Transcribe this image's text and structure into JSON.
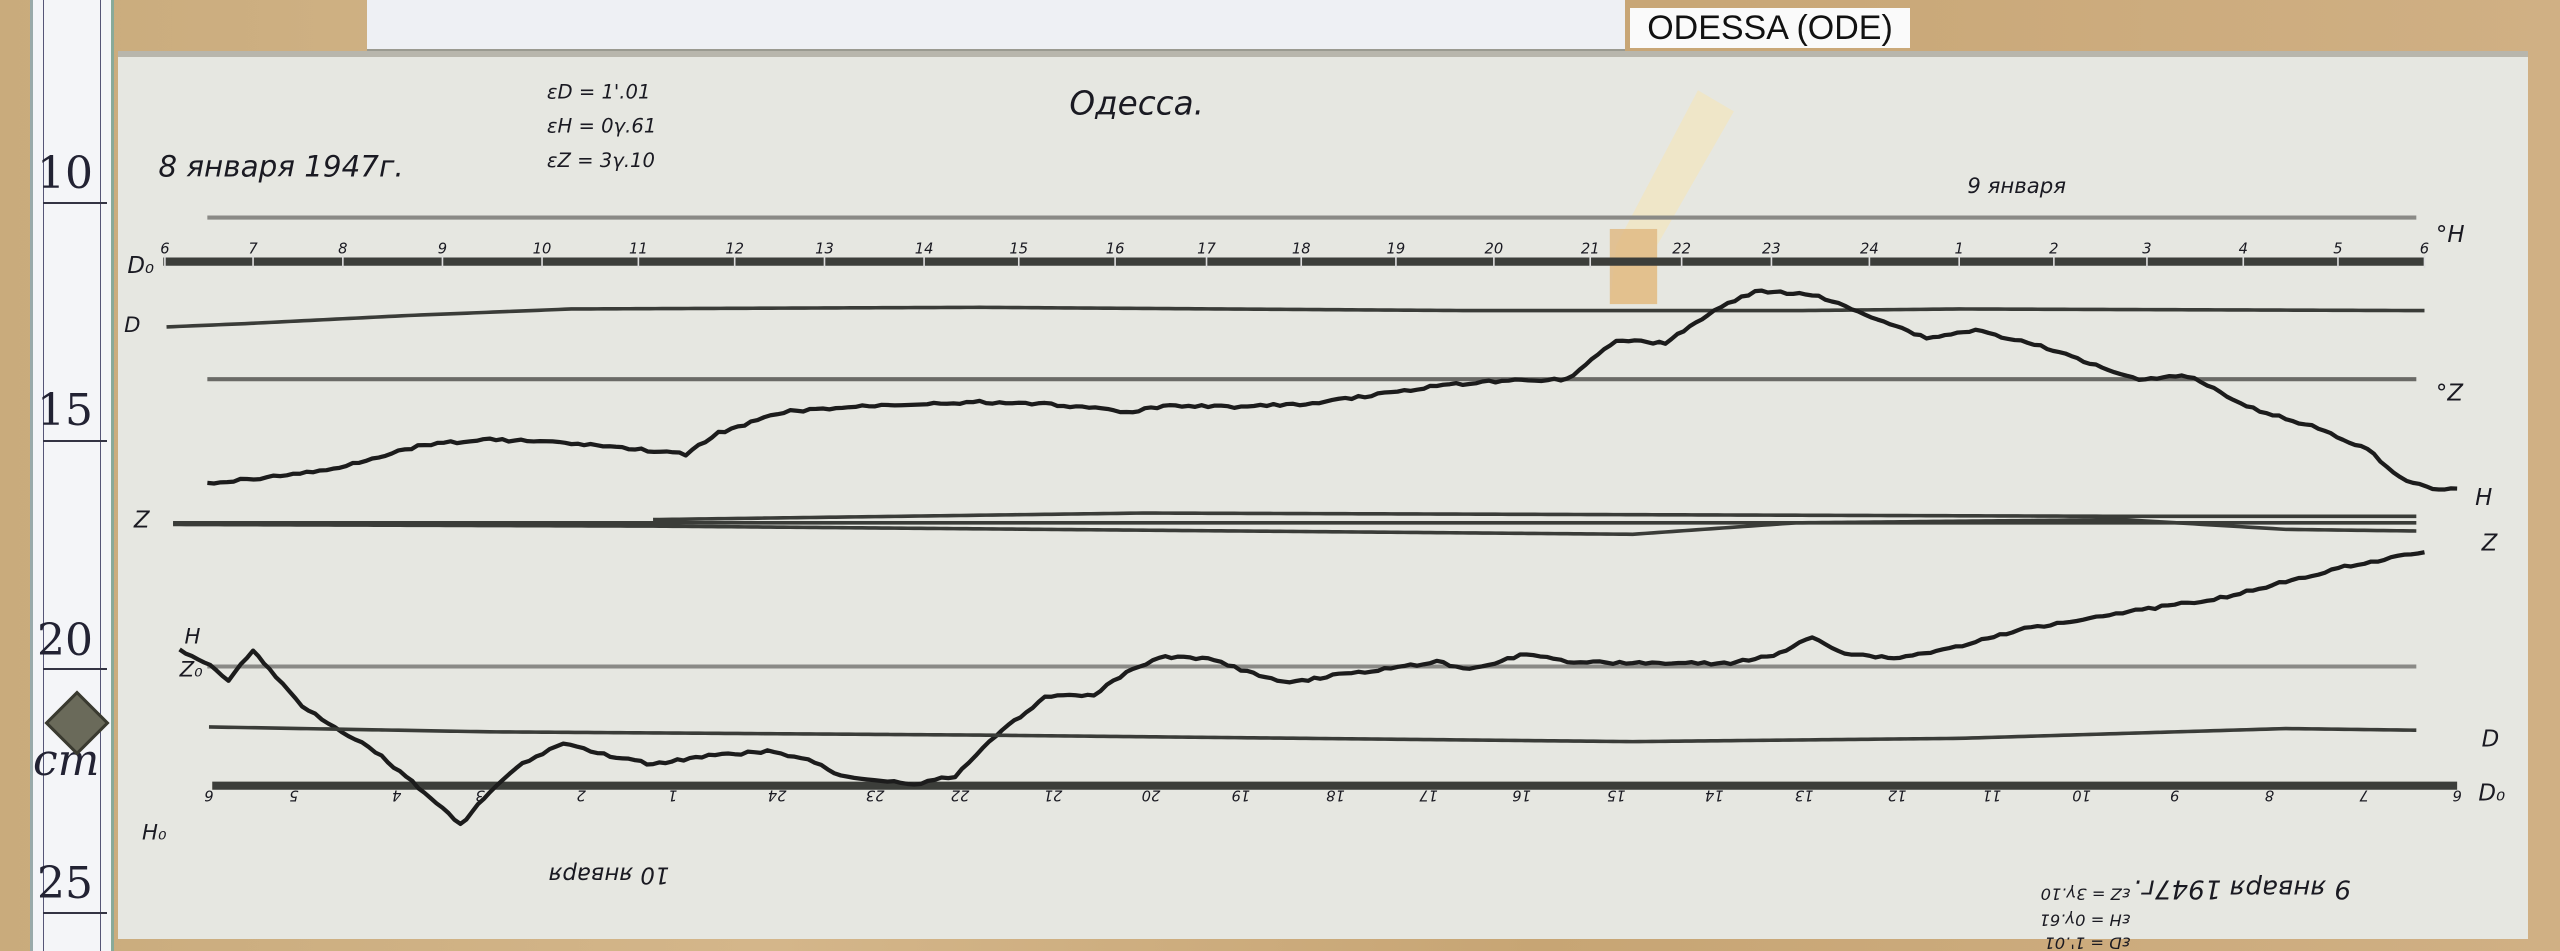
{
  "ruler": {
    "marks": [
      "10",
      "15",
      "20",
      "cm",
      "25"
    ]
  },
  "station_label": "ODESSA (ODE)",
  "magnetogram": {
    "title": "Одесса.",
    "date_start": "8 января 1947г.",
    "date_next": "9 января",
    "scale_values": {
      "eD": "εD = 1'.01",
      "eH": "εH = 0γ.61",
      "eZ": "εZ = 3γ.10"
    },
    "upper_hour_labels": [
      "6",
      "7",
      "8",
      "9",
      "10",
      "11",
      "12",
      "13",
      "14",
      "15",
      "16",
      "17",
      "18",
      "19",
      "20",
      "21",
      "22",
      "23",
      "24",
      "1",
      "2",
      "3",
      "4",
      "5",
      "6"
    ],
    "lower_hour_labels": [
      "6",
      "5",
      "4",
      "3",
      "2",
      "1",
      "24",
      "23",
      "22",
      "21",
      "20",
      "19",
      "18",
      "17",
      "16",
      "15",
      "14",
      "13",
      "12",
      "11",
      "10",
      "9",
      "8",
      "7",
      "6"
    ],
    "trace_labels": {
      "D0": "D₀",
      "D": "D",
      "H_right": "H",
      "Z_left": "Z",
      "Z_right": "Z",
      "H_deg": "°H",
      "Z_deg": "°Z",
      "H_low": "H",
      "Z0": "Z₀",
      "H0": "H₀",
      "D_right": "D",
      "D0_right": "D₀"
    },
    "inverted_text": {
      "date_a": "10 января",
      "date_b": "9 января 1947г.",
      "eZ": "εZ = 3γ.10",
      "eH": "εH = 0γ.61",
      "eD": "εD = 1'.01"
    }
  },
  "colors": {
    "paper": "#e6e7e1",
    "ink": "#1a1a22",
    "wood": "#c9ab7c"
  }
}
